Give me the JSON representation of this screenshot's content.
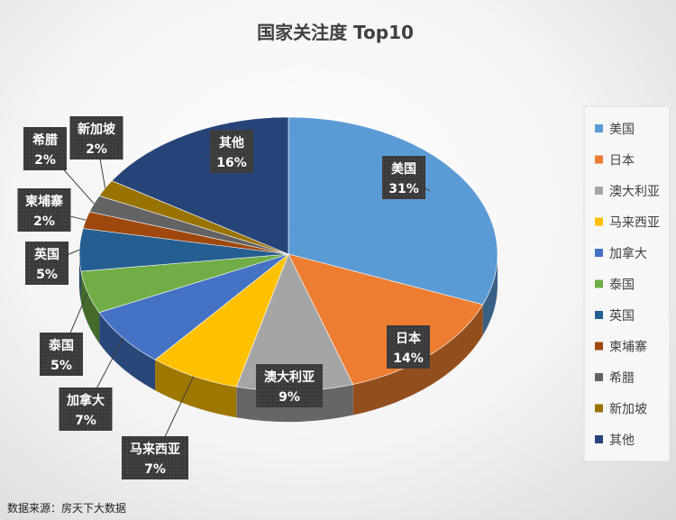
{
  "chart_data": {
    "type": "pie",
    "title": "国家关注度 Top10",
    "slices": [
      {
        "name": "美国",
        "value": 31,
        "label": "31%",
        "color": "#5b9bd5"
      },
      {
        "name": "日本",
        "value": 14,
        "label": "14%",
        "color": "#ed7d31"
      },
      {
        "name": "澳大利亚",
        "value": 9,
        "label": "9%",
        "color": "#a5a5a5"
      },
      {
        "name": "马来西亚",
        "value": 7,
        "label": "7%",
        "color": "#ffc000"
      },
      {
        "name": "加拿大",
        "value": 7,
        "label": "7%",
        "color": "#4472c4"
      },
      {
        "name": "泰国",
        "value": 5,
        "label": "5%",
        "color": "#70ad47"
      },
      {
        "name": "英国",
        "value": 5,
        "label": "5%",
        "color": "#255e91"
      },
      {
        "name": "柬埔寨",
        "value": 2,
        "label": "2%",
        "color": "#9e480e"
      },
      {
        "name": "希腊",
        "value": 2,
        "label": "2%",
        "color": "#636363"
      },
      {
        "name": "新加坡",
        "value": 2,
        "label": "2%",
        "color": "#997300"
      },
      {
        "name": "其他",
        "value": 16,
        "label": "16%",
        "color": "#264478"
      }
    ],
    "legend_position": "right"
  },
  "source_note": "数据来源：房天下大数据"
}
